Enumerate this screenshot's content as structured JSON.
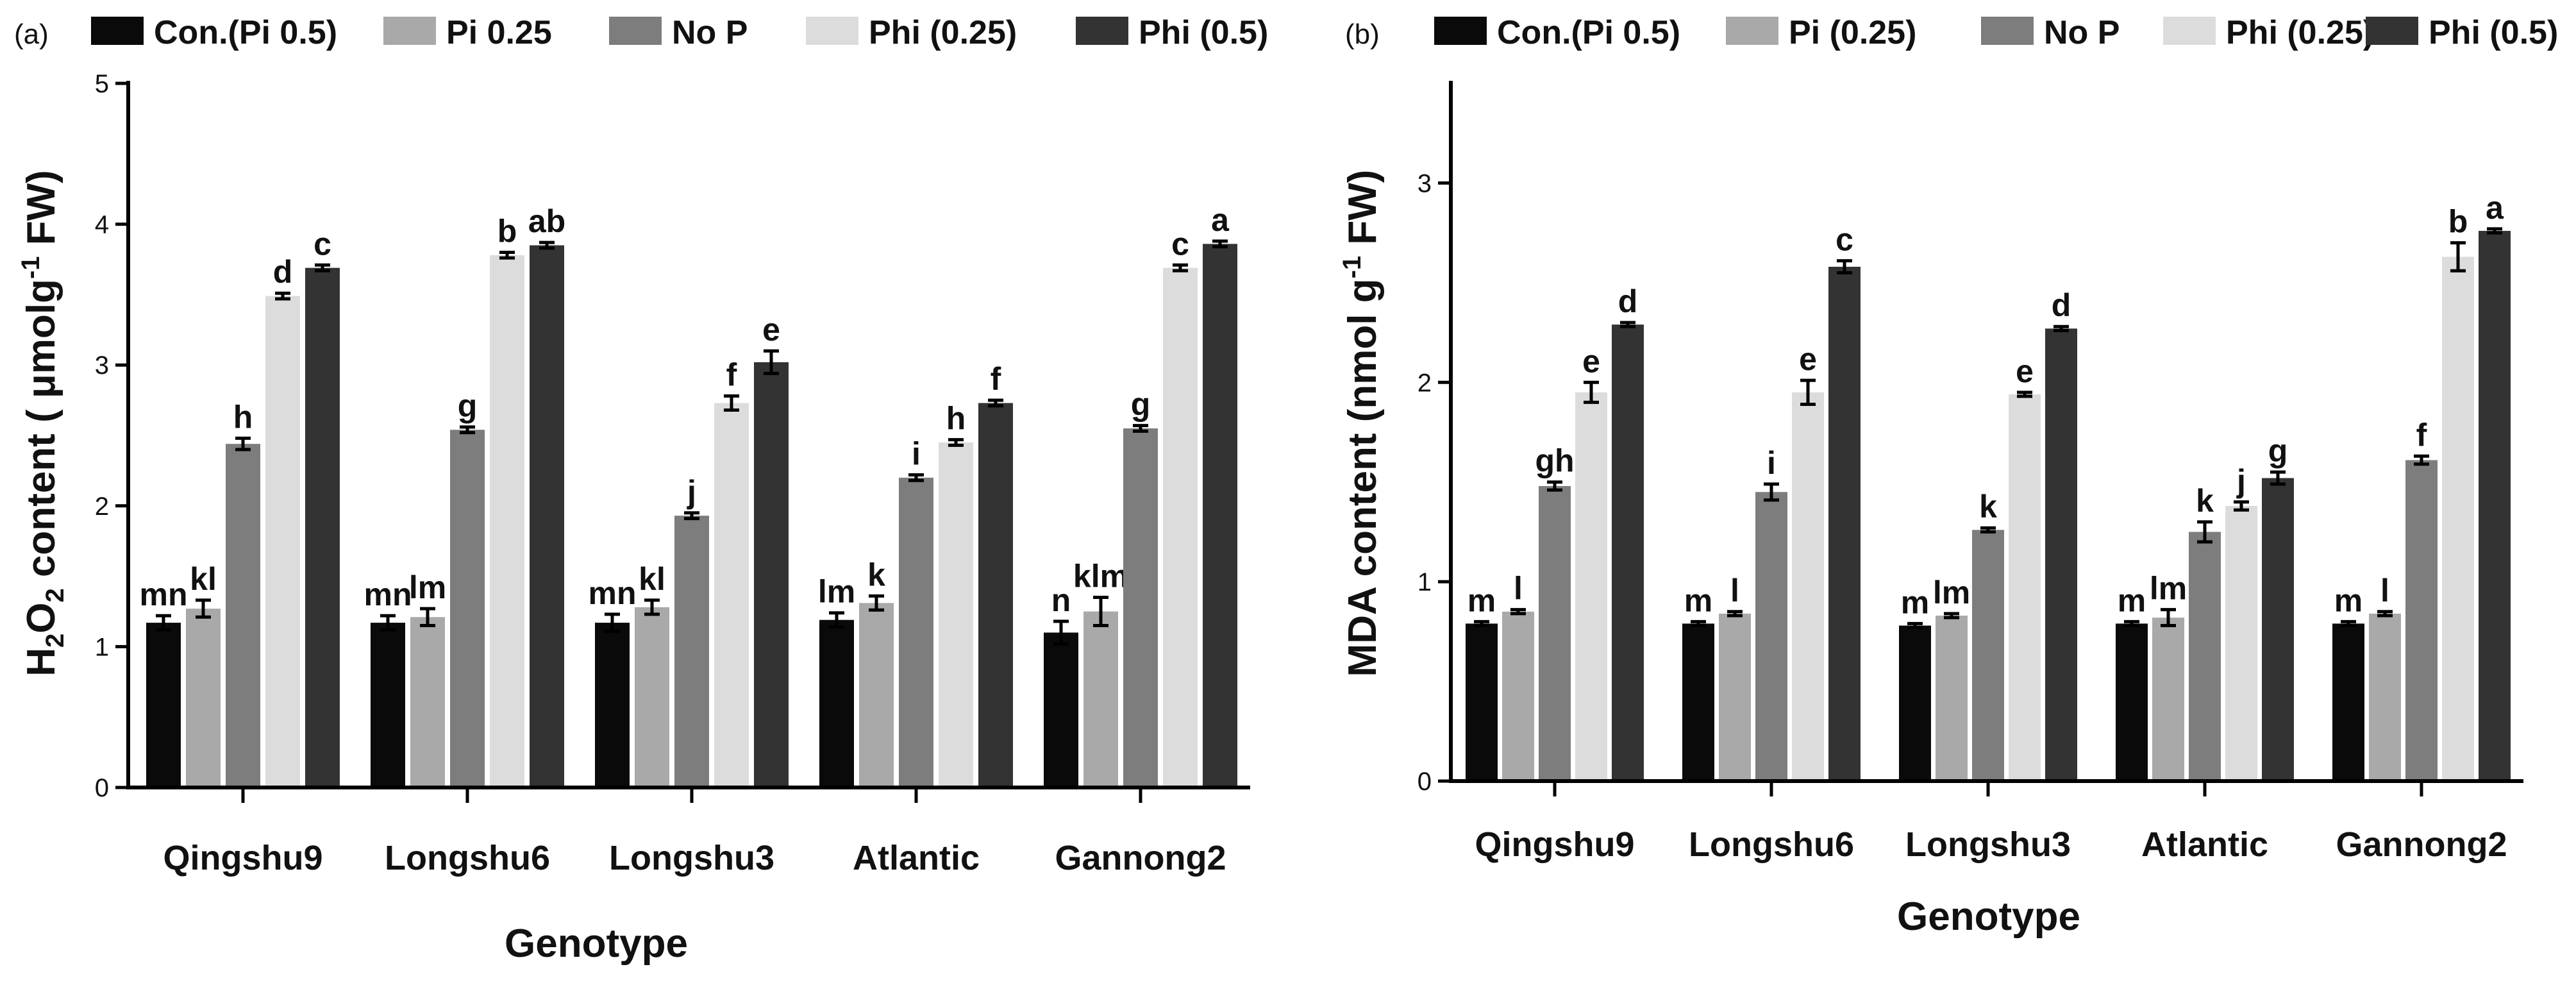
{
  "chart_data": [
    {
      "type": "bar",
      "panel_label": "(a)",
      "title": "",
      "xlabel": "Genotype",
      "ylabel": {
        "prefix": "H",
        "sub1": "2",
        "mid": "O",
        "sub2": "2",
        "main": " content ( μmolg",
        "sup": "-1",
        "suffix": " FW)"
      },
      "ylim": [
        0,
        5
      ],
      "yticks": [
        "0",
        "1",
        "2",
        "3",
        "4",
        "5"
      ],
      "grid": false,
      "legend_position": "top",
      "categories": [
        "Qingshu9",
        "Longshu6",
        "Longshu3",
        "Atlantic",
        "Gannong2"
      ],
      "series": [
        {
          "name": "Con.(Pi 0.5)",
          "color": "#0a0a0a",
          "values": [
            1.17,
            1.17,
            1.17,
            1.19,
            1.1
          ],
          "errors": [
            0.05,
            0.05,
            0.06,
            0.05,
            0.08
          ],
          "labels": [
            "mn",
            "mn",
            "mn",
            "lm",
            "n"
          ]
        },
        {
          "name": "Pi 0.25",
          "color": "#a9a9a9",
          "values": [
            1.27,
            1.21,
            1.28,
            1.31,
            1.25
          ],
          "errors": [
            0.06,
            0.06,
            0.05,
            0.05,
            0.1
          ],
          "labels": [
            "kl",
            "lm",
            "kl",
            "k",
            "klm"
          ]
        },
        {
          "name": "No P",
          "color": "#7d7d7d",
          "values": [
            2.44,
            2.54,
            1.93,
            2.2,
            2.55
          ],
          "errors": [
            0.04,
            0.02,
            0.02,
            0.02,
            0.02
          ],
          "labels": [
            "h",
            "g",
            "j",
            "i",
            "g"
          ]
        },
        {
          "name": "Phi (0.25)",
          "color": "#dcdcdc",
          "values": [
            3.49,
            3.78,
            2.73,
            2.45,
            3.69
          ],
          "errors": [
            0.02,
            0.02,
            0.05,
            0.02,
            0.02
          ],
          "labels": [
            "d",
            "b",
            "f",
            "h",
            "c"
          ]
        },
        {
          "name": "Phi (0.5)",
          "color": "#333333",
          "values": [
            3.69,
            3.85,
            3.02,
            2.73,
            3.86
          ],
          "errors": [
            0.02,
            0.02,
            0.08,
            0.02,
            0.02
          ],
          "labels": [
            "c",
            "ab",
            "e",
            "f",
            "a"
          ]
        }
      ]
    },
    {
      "type": "bar",
      "panel_label": "(b)",
      "title": "",
      "xlabel": "Genotype",
      "ylabel": {
        "prefix": "",
        "sub1": "",
        "mid": "",
        "sub2": "",
        "main": "MDA content (nmol g",
        "sup": "-1",
        "suffix": " FW)"
      },
      "ylim": [
        0,
        3.5
      ],
      "yticks": [
        "0",
        "1",
        "2",
        "3"
      ],
      "grid": false,
      "legend_position": "top",
      "categories": [
        "Qingshu9",
        "Longshu6",
        "Longshu3",
        "Atlantic",
        "Gannong2"
      ],
      "series": [
        {
          "name": "Con.(Pi 0.5)",
          "color": "#0a0a0a",
          "values": [
            0.79,
            0.79,
            0.78,
            0.79,
            0.79
          ],
          "errors": [
            0.01,
            0.01,
            0.01,
            0.01,
            0.01
          ],
          "labels": [
            "m",
            "m",
            "m",
            "m",
            "m"
          ]
        },
        {
          "name": "Pi (0.25)",
          "color": "#a9a9a9",
          "values": [
            0.85,
            0.84,
            0.83,
            0.82,
            0.84
          ],
          "errors": [
            0.01,
            0.01,
            0.01,
            0.04,
            0.01
          ],
          "labels": [
            "l",
            "l",
            "lm",
            "lm",
            "l"
          ]
        },
        {
          "name": "No P",
          "color": "#7d7d7d",
          "values": [
            1.48,
            1.45,
            1.26,
            1.25,
            1.61
          ],
          "errors": [
            0.02,
            0.04,
            0.01,
            0.05,
            0.02
          ],
          "labels": [
            "gh",
            "i",
            "k",
            "k",
            "f"
          ]
        },
        {
          "name": "Phi (0.25)",
          "color": "#dcdcdc",
          "values": [
            1.95,
            1.95,
            1.94,
            1.38,
            2.63
          ],
          "errors": [
            0.05,
            0.06,
            0.01,
            0.02,
            0.07
          ],
          "labels": [
            "e",
            "e",
            "e",
            "j",
            "b"
          ]
        },
        {
          "name": "Phi (0.5)",
          "color": "#333333",
          "values": [
            2.29,
            2.58,
            2.27,
            1.52,
            2.76
          ],
          "errors": [
            0.01,
            0.03,
            0.01,
            0.03,
            0.01
          ],
          "labels": [
            "d",
            "c",
            "d",
            "g",
            "a"
          ]
        }
      ]
    }
  ]
}
